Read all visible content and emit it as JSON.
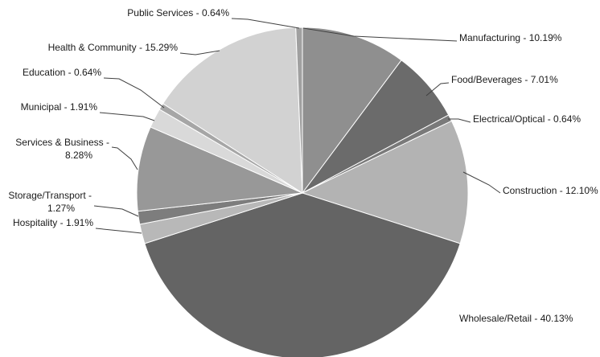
{
  "chart_data": {
    "type": "pie",
    "title": "",
    "start": "top",
    "direction": "clockwise",
    "series": [
      {
        "label": "Manufacturing - 10.19%",
        "value": 10.19,
        "color": "#8f8f8f"
      },
      {
        "label": "Food/Beverages - 7.01%",
        "value": 7.01,
        "color": "#6b6b6b"
      },
      {
        "label": "Electrical/Optical - 0.64%",
        "value": 0.64,
        "color": "#7a7a7a"
      },
      {
        "label": "Construction - 12.10%",
        "value": 12.1,
        "color": "#b3b3b3"
      },
      {
        "label": "Wholesale/Retail - 40.13%",
        "value": 40.13,
        "color": "#646464"
      },
      {
        "label": "Hospitality - 1.91%",
        "value": 1.91,
        "color": "#b8b8b8"
      },
      {
        "label": "Storage/Transport - 1.27%",
        "lines": [
          "Storage/Transport -",
          "1.27%"
        ],
        "value": 1.27,
        "color": "#7d7d7d"
      },
      {
        "label": "Services & Business - 8.28%",
        "lines": [
          "Services & Business -",
          "8.28%"
        ],
        "value": 8.28,
        "color": "#989898"
      },
      {
        "label": "Municipal - 1.91%",
        "value": 1.91,
        "color": "#d9d9d9"
      },
      {
        "label": "Education - 0.64%",
        "value": 0.64,
        "color": "#a6a6a6"
      },
      {
        "label": "Health & Community - 15.29%",
        "value": 15.29,
        "color": "#d2d2d2"
      },
      {
        "label": "Public Services - 0.64%",
        "value": 0.64,
        "color": "#a0a0a0"
      }
    ]
  }
}
